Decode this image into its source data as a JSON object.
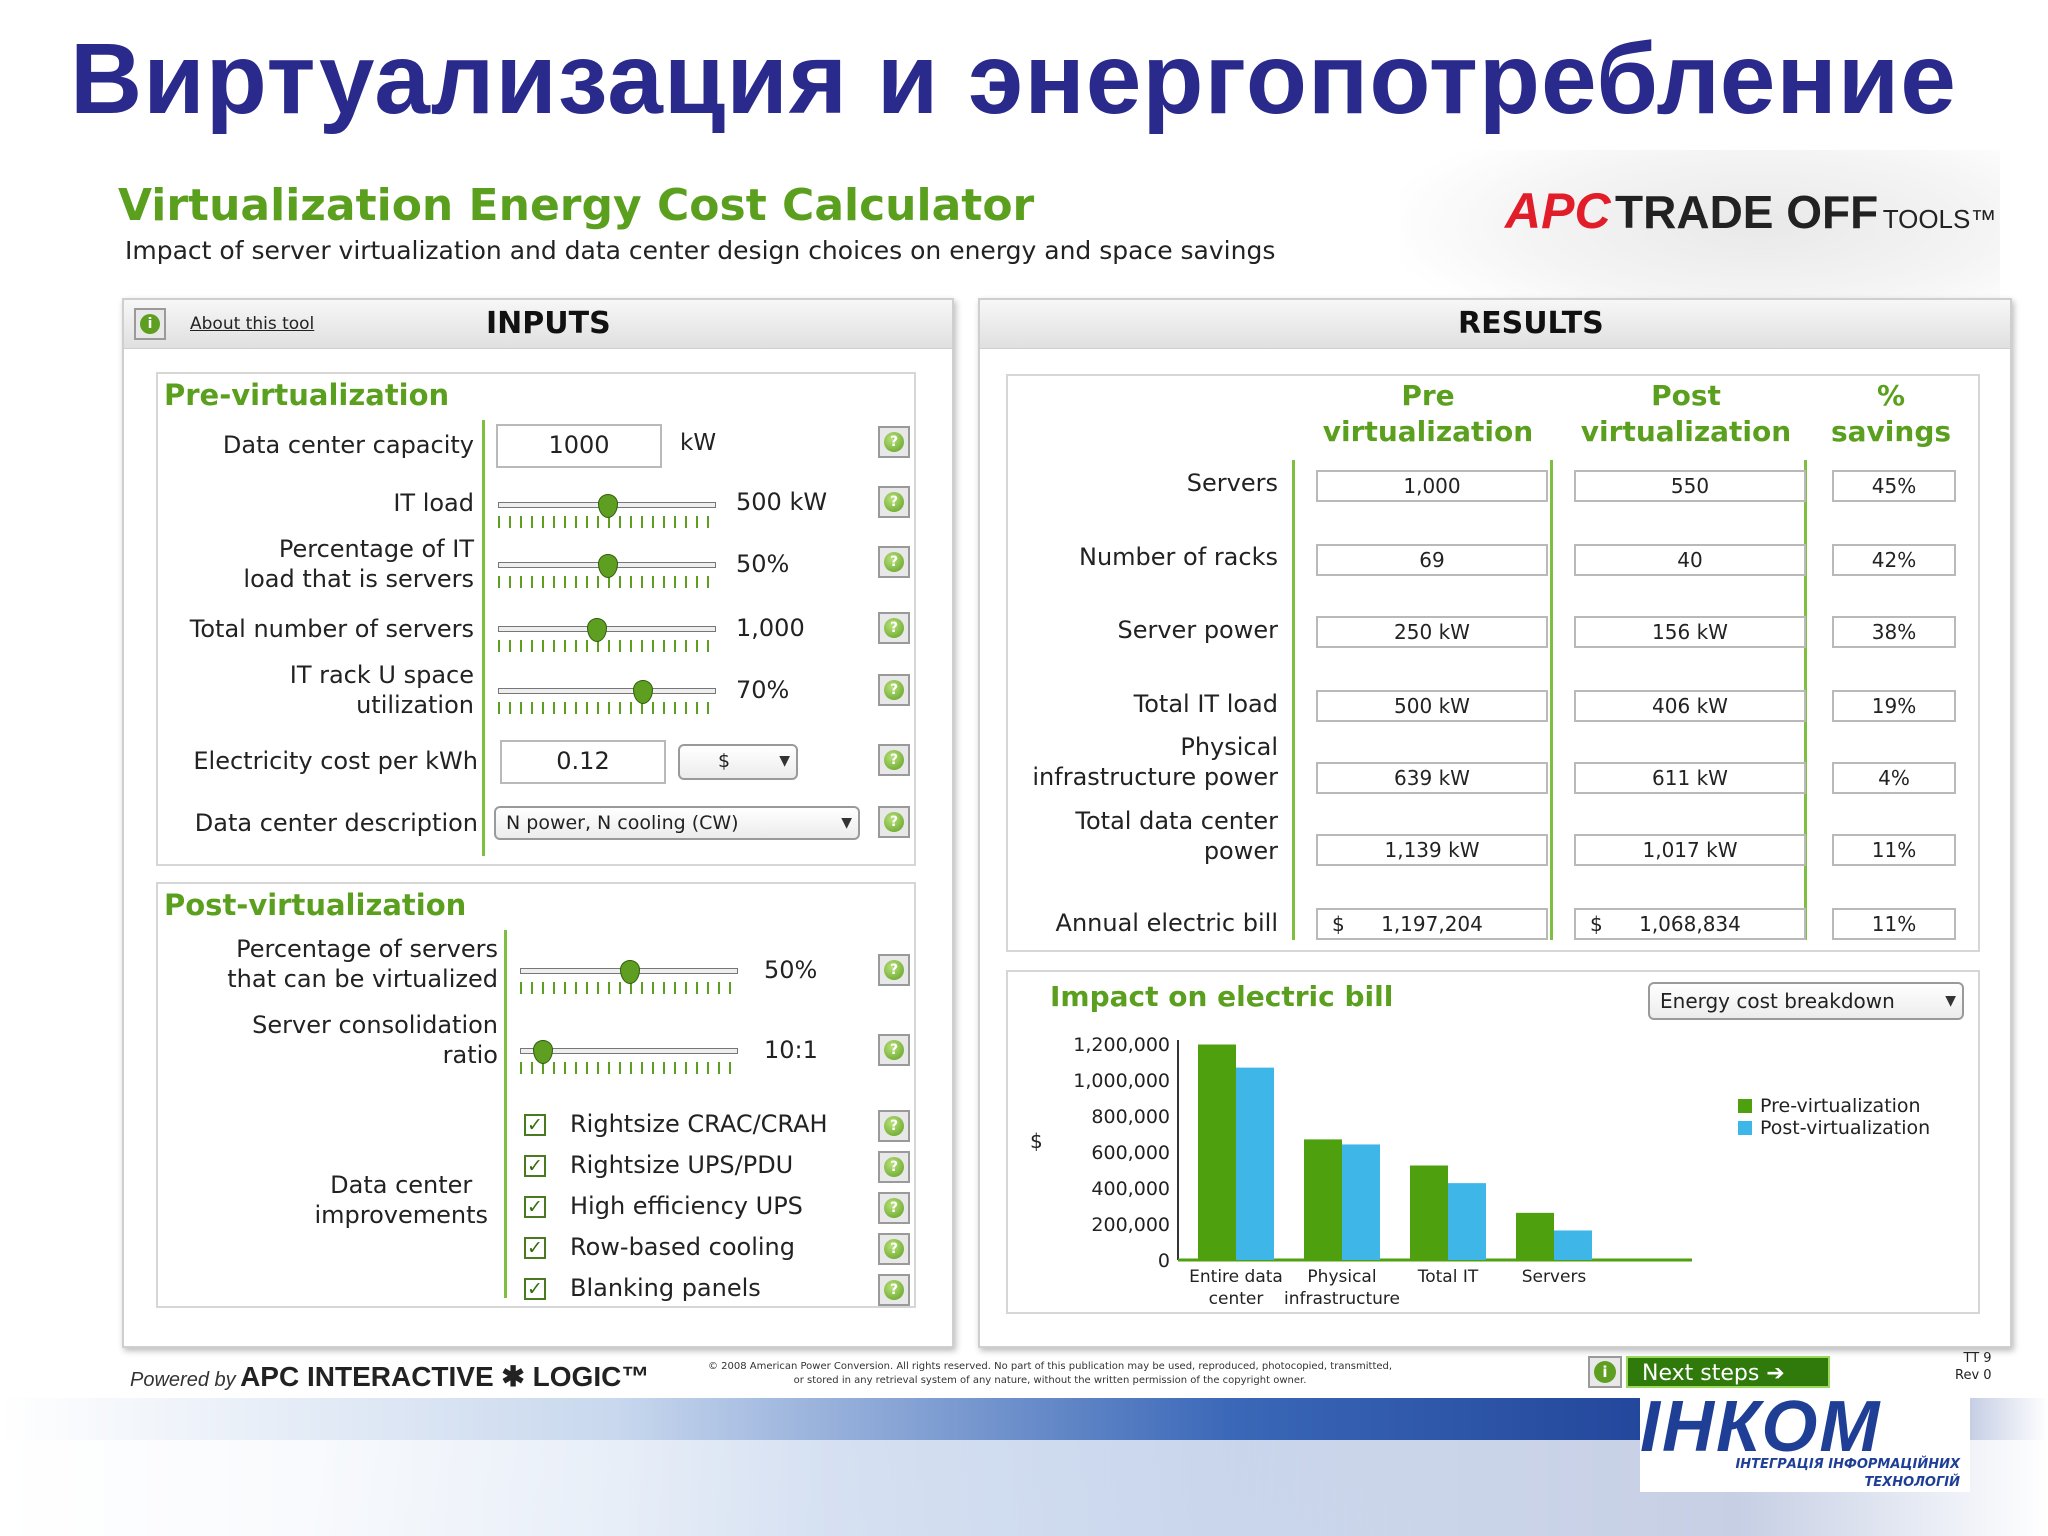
{
  "slide_title": "Виртуализация и энергопотребление",
  "calculator": {
    "title": "Virtualization Energy Cost Calculator",
    "subtitle": "Impact of server virtualization and data center design choices on energy and space savings",
    "logo": {
      "apc": "APC",
      "trade_off": "TRADE OFF",
      "tools": "TOOLS™"
    }
  },
  "inputs": {
    "about_link": "About this tool",
    "header": "INPUTS",
    "pre": {
      "title": "Pre-virtualization",
      "capacity": {
        "label": "Data center capacity",
        "value": "1000",
        "unit": "kW"
      },
      "it_load": {
        "label": "IT load",
        "value_text": "500 kW",
        "level": 0.5
      },
      "pct_servers": {
        "label_line1": "Percentage of IT",
        "label_line2": "load that is servers",
        "value_text": "50%",
        "level": 0.5
      },
      "total_servers": {
        "label": "Total number of servers",
        "value_text": "1,000",
        "level": 0.45
      },
      "rack_util": {
        "label_line1": "IT rack U space",
        "label_line2": "utilization",
        "value_text": "70%",
        "level": 0.66
      },
      "elec_cost": {
        "label": "Electricity cost per kWh",
        "value": "0.12",
        "currency": "$"
      },
      "dc_desc": {
        "label": "Data center description",
        "value": "N power, N cooling (CW)"
      }
    },
    "post": {
      "title": "Post-virtualization",
      "pct_virt": {
        "label_line1": "Percentage of servers",
        "label_line2": "that can be virtualized",
        "value_text": "50%",
        "level": 0.5
      },
      "consolidation": {
        "label_line1": "Server consolidation",
        "label_line2": "ratio",
        "value_text": "10:1",
        "level": 0.1
      },
      "improvements": {
        "label_line1": "Data center",
        "label_line2": "improvements",
        "items": [
          {
            "label": "Rightsize CRAC/CRAH",
            "checked": true
          },
          {
            "label": "Rightsize UPS/PDU",
            "checked": true
          },
          {
            "label": "High efficiency UPS",
            "checked": true
          },
          {
            "label": "Row-based cooling",
            "checked": true
          },
          {
            "label": "Blanking panels",
            "checked": true
          }
        ]
      }
    }
  },
  "results": {
    "header": "RESULTS",
    "columns": {
      "pre_line1": "Pre",
      "pre_line2": "virtualization",
      "post_line1": "Post",
      "post_line2": "virtualization",
      "sav_line1": "%",
      "sav_line2": "savings"
    },
    "rows": [
      {
        "label_line1": "",
        "label_line2": "Servers",
        "pre": "1,000",
        "post": "550",
        "savings": "45%"
      },
      {
        "label_line1": "",
        "label_line2": "Number of racks",
        "pre": "69",
        "post": "40",
        "savings": "42%"
      },
      {
        "label_line1": "",
        "label_line2": "Server power",
        "pre": "250 kW",
        "post": "156 kW",
        "savings": "38%"
      },
      {
        "label_line1": "",
        "label_line2": "Total IT load",
        "pre": "500 kW",
        "post": "406 kW",
        "savings": "19%"
      },
      {
        "label_line1": "Physical",
        "label_line2": "infrastructure power",
        "pre": "639 kW",
        "post": "611 kW",
        "savings": "4%"
      },
      {
        "label_line1": "Total data center",
        "label_line2": "power",
        "pre": "1,139 kW",
        "post": "1,017 kW",
        "savings": "11%"
      },
      {
        "label_line1": "",
        "label_line2": "Annual electric bill",
        "pre_currency": "$",
        "pre": "1,197,204",
        "post_currency": "$",
        "post": "1,068,834",
        "savings": "11%"
      }
    ]
  },
  "chart_data": {
    "type": "bar",
    "title": "Impact on electric bill",
    "dropdown": "Energy cost breakdown",
    "ylabel": "$",
    "ylim": [
      0,
      1200000
    ],
    "yticks": [
      "1,200,000",
      "1,000,000",
      "800,000",
      "600,000",
      "400,000",
      "200,000",
      "0"
    ],
    "categories": [
      {
        "line1": "Entire data",
        "line2": "center"
      },
      {
        "line1": "Physical",
        "line2": "infrastructure"
      },
      {
        "line1": "Total IT",
        "line2": ""
      },
      {
        "line1": "Servers",
        "line2": ""
      }
    ],
    "series": [
      {
        "name": "Pre-virtualization",
        "color": "#4ea00f",
        "values": [
          1197204,
          670000,
          525000,
          262000
        ]
      },
      {
        "name": "Post-virtualization",
        "color": "#3fb6e8",
        "values": [
          1068834,
          642000,
          427000,
          164000
        ]
      }
    ],
    "legend": "right"
  },
  "footer": {
    "powered_by": "Powered by",
    "apc_logic": "APC INTERACTIVE ✱ LOGIC™",
    "copyright_line1": "© 2008 American Power Conversion. All rights reserved. No part of this publication may be used, reproduced, photocopied, transmitted,",
    "copyright_line2": "or stored in any retrieval system of any nature, without the written permission of the copyright owner.",
    "next_steps": "Next steps ➔",
    "tt": "TT 9",
    "rev": "Rev 0"
  },
  "company": {
    "name": "IНКОМ",
    "tagline_line1": "ІНТЕГРАЦІЯ ІНФОРМАЦІЙНИХ",
    "tagline_line2": "ТЕХНОЛОГІЙ"
  },
  "colors": {
    "accent_green": "#5a9f1e",
    "title_blue": "#2a2a8c",
    "brand_red": "#e21d2a"
  }
}
